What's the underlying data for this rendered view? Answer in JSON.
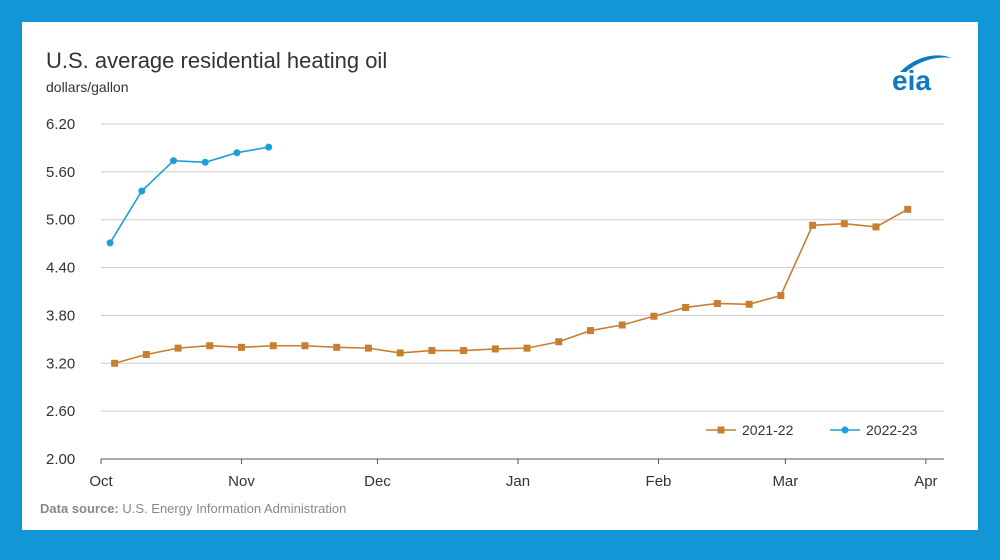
{
  "title": "U.S. average residential heating oil",
  "unit": "dollars/gallon",
  "source_label": "Data source:",
  "source_text": "U.S. Energy Information Administration",
  "logo_text": "eia",
  "colors": {
    "background": "#1296d6",
    "series_2021": "#c87f30",
    "series_2022": "#1e9fd8",
    "grid": "#cccccc",
    "logo": "#0f7ac2"
  },
  "chart_data": {
    "type": "line",
    "title": "U.S. average residential heating oil",
    "ylabel": "dollars/gallon",
    "ylim": [
      2.0,
      6.2
    ],
    "y_ticks": [
      "2.00",
      "2.60",
      "3.20",
      "3.80",
      "4.40",
      "5.00",
      "5.60",
      "6.20"
    ],
    "x_ticks": [
      {
        "label": "Oct",
        "day": 0
      },
      {
        "label": "Nov",
        "day": 31
      },
      {
        "label": "Dec",
        "day": 61
      },
      {
        "label": "Jan",
        "day": 92
      },
      {
        "label": "Feb",
        "day": 123
      },
      {
        "label": "Mar",
        "day": 151
      },
      {
        "label": "Apr",
        "day": 182
      }
    ],
    "x_range_days": [
      0,
      186
    ],
    "grid": true,
    "legend_position": "bottom-right",
    "series": [
      {
        "name": "2021-22",
        "marker": "square",
        "color": "#c87f30",
        "x": [
          "Oct 4",
          "Oct 11",
          "Oct 18",
          "Oct 25",
          "Nov 1",
          "Nov 8",
          "Nov 15",
          "Nov 22",
          "Nov 29",
          "Dec 6",
          "Dec 13",
          "Dec 20",
          "Dec 27",
          "Jan 3",
          "Jan 10",
          "Jan 17",
          "Jan 24",
          "Jan 31",
          "Feb 7",
          "Feb 14",
          "Feb 21",
          "Feb 28",
          "Mar 7",
          "Mar 14",
          "Mar 21",
          "Mar 28"
        ],
        "y": [
          3.2,
          3.31,
          3.39,
          3.42,
          3.4,
          3.42,
          3.42,
          3.4,
          3.39,
          3.33,
          3.36,
          3.36,
          3.38,
          3.39,
          3.47,
          3.61,
          3.68,
          3.79,
          3.9,
          3.95,
          3.94,
          4.05,
          4.93,
          4.95,
          4.91,
          5.13
        ]
      },
      {
        "name": "2022-23",
        "marker": "circle",
        "color": "#1e9fd8",
        "x": [
          "Oct 3",
          "Oct 10",
          "Oct 17",
          "Oct 24",
          "Oct 31",
          "Nov 7"
        ],
        "y": [
          4.71,
          5.36,
          5.74,
          5.72,
          5.84,
          5.91
        ]
      }
    ]
  }
}
